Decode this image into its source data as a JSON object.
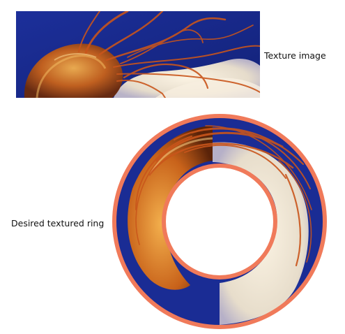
{
  "labels": {
    "texture": "Texture image",
    "ring": "Desired textured ring"
  },
  "colors": {
    "water_blue": "#1a2c94",
    "water_deep": "#0f1c72",
    "jelly_orange": "#c8621a",
    "jelly_amber": "#e79a34",
    "tentacle": "#c9551b",
    "cloud_white": "#eee6d6",
    "ring_border": "#f07a5a"
  }
}
